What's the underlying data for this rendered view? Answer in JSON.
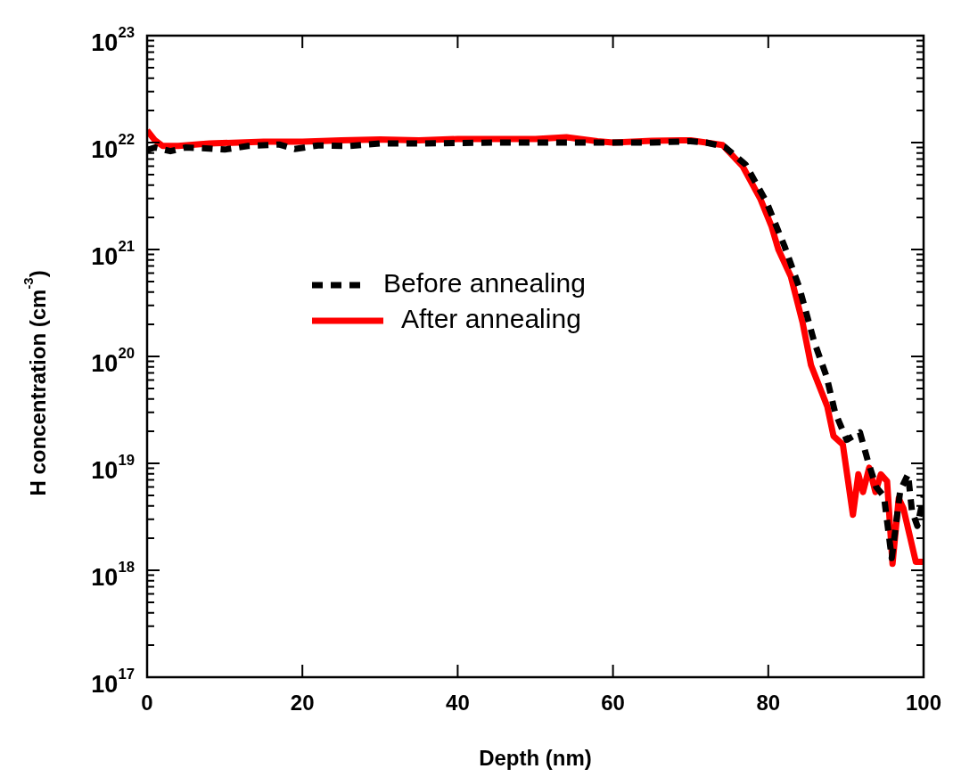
{
  "chart_data": {
    "type": "line",
    "xlabel": "Depth (nm)",
    "ylabel": "H concentration (cm$^{-3}$)",
    "xlim": [
      0,
      100
    ],
    "xticks": [
      0,
      20,
      40,
      60,
      80,
      100
    ],
    "ylim": [
      1e+17,
      1e+23
    ],
    "yticks": [
      {
        "value": 1e+17,
        "label": "10$^{17}$"
      },
      {
        "value": 1e+18,
        "label": "10$^{18}$"
      },
      {
        "value": 1e+19,
        "label": "10$^{19}$"
      },
      {
        "value": 1e+20,
        "label": "10$^{20}$"
      },
      {
        "value": 1e+21,
        "label": "10$^{21}$"
      },
      {
        "value": 1e+22,
        "label": "10$^{22}$"
      },
      {
        "value": 1e+23,
        "label": "10$^{23}$"
      }
    ],
    "log": "y",
    "grid": false,
    "legend": "left",
    "marker": "none",
    "series": [
      {
        "name": "Before annealing",
        "color": "#000000",
        "line_style": "dashed",
        "x": [
          0,
          1,
          3,
          5,
          8,
          10,
          13,
          17,
          19,
          22,
          26,
          30,
          35,
          40,
          45,
          50,
          55,
          60,
          65,
          70,
          72,
          74.4,
          77.1,
          79.8,
          82.1,
          84,
          85.9,
          87.5,
          88.6,
          90.1,
          91.8,
          92.8,
          93.9,
          94.9,
          95.9,
          97,
          98,
          98.5,
          99.2,
          100
        ],
        "values": [
          8.5e+21,
          9e+21,
          8.3e+21,
          9e+21,
          8.8e+21,
          8.6e+21,
          9.3e+21,
          9.6e+21,
          8.7e+21,
          9.4e+21,
          9.3e+21,
          9.8e+21,
          9.8e+21,
          9.9e+21,
          1e+22,
          1e+22,
          1e+22,
          1e+22,
          1e+22,
          1.03e+22,
          1e+22,
          9.1e+21,
          6.2e+21,
          2.75e+21,
          1.07e+21,
          4.4e+20,
          1.38e+20,
          6.5e+19,
          3e+19,
          1.66e+19,
          1.95e+19,
          1.07e+19,
          6e+18,
          4.9e+18,
          1.3e+18,
          5.6e+18,
          7.9e+18,
          3.6e+18,
          2.6e+18,
          4.9e+18
        ]
      },
      {
        "name": "After annealing",
        "color": "#ff0000",
        "line_style": "solid",
        "x": [
          0,
          1,
          2,
          4,
          8,
          15,
          20,
          25,
          30,
          35,
          40,
          45,
          50,
          54,
          58,
          60,
          65,
          70,
          72,
          74.1,
          76.7,
          79,
          80.4,
          81.3,
          82.9,
          84.4,
          85.5,
          87.6,
          88.4,
          89.6,
          90.9,
          91.6,
          92.2,
          93,
          93.8,
          94.5,
          95.3,
          96,
          96.8,
          97.4,
          99,
          100
        ],
        "values": [
          1.3e+22,
          1.05e+22,
          9.3e+21,
          9.3e+21,
          9.8e+21,
          1.02e+22,
          1.02e+22,
          1.05e+22,
          1.07e+22,
          1.05e+22,
          1.08e+22,
          1.08e+22,
          1.08e+22,
          1.12e+22,
          1.03e+22,
          1e+22,
          1.04e+22,
          1.05e+22,
          1e+22,
          9.5e+21,
          6e+21,
          2.95e+21,
          1.66e+21,
          1e+21,
          5.6e+20,
          2.1e+20,
          8.3e+19,
          3.4e+19,
          1.8e+19,
          1.5e+19,
          3.3e+18,
          7.9e+18,
          5.4e+18,
          9.1e+18,
          5.4e+18,
          7.9e+18,
          6.8e+18,
          1.15e+18,
          4.7e+18,
          3.8e+18,
          1.2e+18,
          1.2e+18
        ]
      }
    ]
  }
}
